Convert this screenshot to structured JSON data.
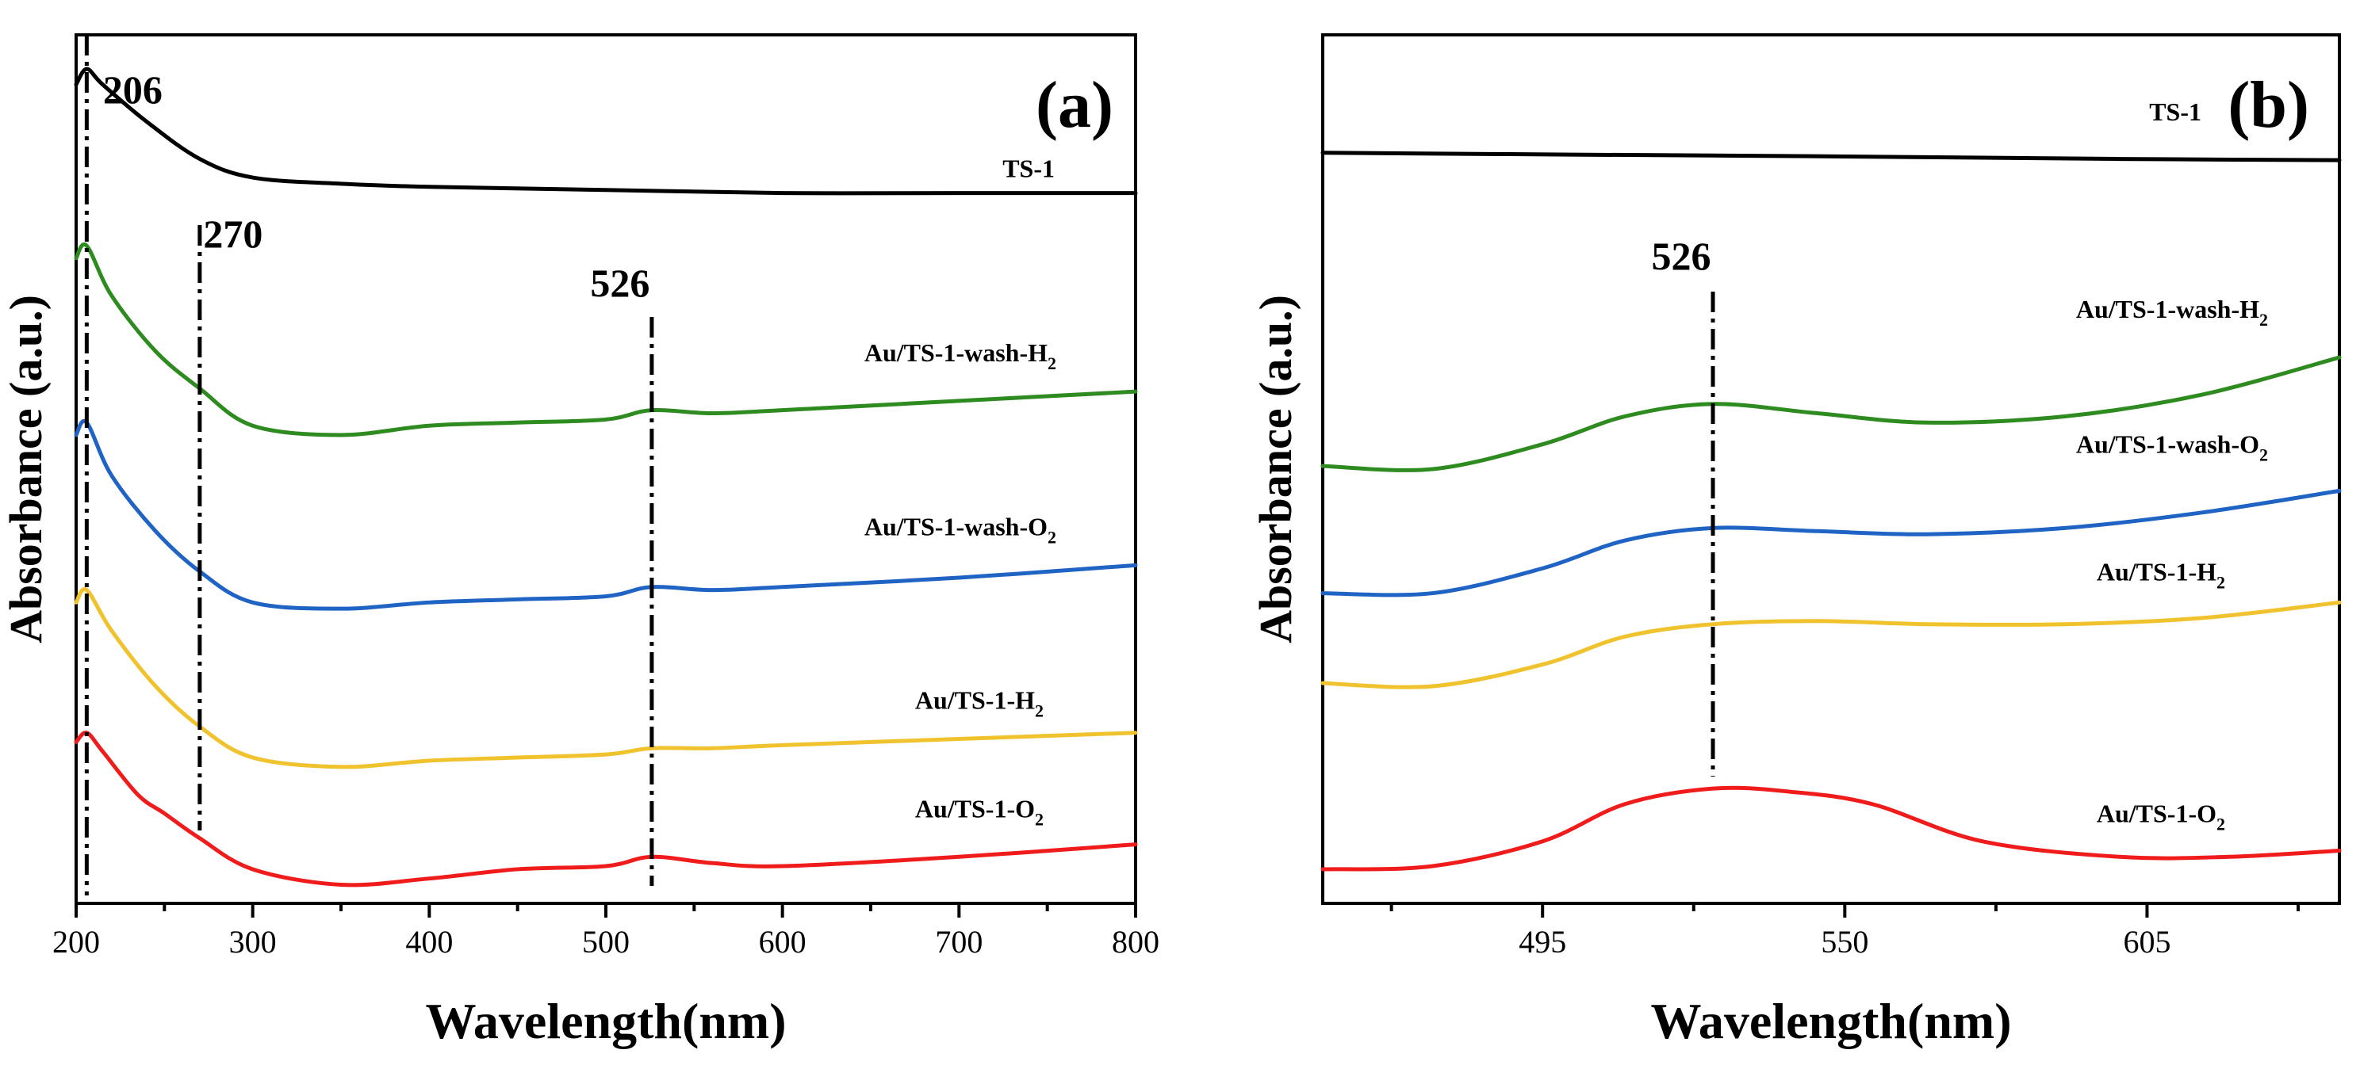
{
  "chart_data": [
    {
      "panel_label": "(a)",
      "type": "line",
      "title": "",
      "xlabel": "Wavelength(nm)",
      "ylabel": "Absorbance (a.u.)",
      "xlim": [
        200,
        800
      ],
      "ylim": [
        0,
        14
      ],
      "xticks": [
        "200",
        "300",
        "400",
        "500",
        "600",
        "700",
        "800"
      ],
      "xtick_values": [
        200,
        300,
        400,
        500,
        600,
        700,
        800
      ],
      "yticks_shown": false,
      "series": [
        {
          "name": "TS-1",
          "label_main": "TS-1",
          "label_sub": "",
          "label_suffix": "",
          "color": "#000000",
          "x": [
            200,
            206,
            215,
            240,
            270,
            300,
            350,
            400,
            500,
            600,
            700,
            800
          ],
          "y": [
            13.2,
            13.45,
            13.2,
            12.6,
            12.0,
            11.7,
            11.6,
            11.55,
            11.5,
            11.45,
            11.45,
            11.45
          ]
        },
        {
          "name": "Au/TS-1-wash-H2",
          "label_main": "Au/TS-1-wash-H",
          "label_sub": "2",
          "label_suffix": "",
          "color": "#2e8b1f",
          "x": [
            200,
            206,
            220,
            245,
            270,
            300,
            350,
            400,
            450,
            500,
            526,
            560,
            600,
            700,
            800
          ],
          "y": [
            10.4,
            10.6,
            9.8,
            8.9,
            8.3,
            7.7,
            7.55,
            7.7,
            7.75,
            7.8,
            7.95,
            7.9,
            7.95,
            8.1,
            8.25
          ]
        },
        {
          "name": "Au/TS-1-wash-O2",
          "label_main": "Au/TS-1-wash-O",
          "label_sub": "2",
          "label_suffix": "",
          "color": "#1f64c4",
          "x": [
            200,
            206,
            220,
            245,
            270,
            300,
            350,
            400,
            450,
            500,
            526,
            560,
            600,
            700,
            800
          ],
          "y": [
            7.55,
            7.75,
            6.9,
            6.0,
            5.35,
            4.85,
            4.75,
            4.85,
            4.9,
            4.95,
            5.1,
            5.05,
            5.1,
            5.25,
            5.45
          ]
        },
        {
          "name": "Au/TS-1-H2",
          "label_main": "Au/TS-1-H",
          "label_sub": "2",
          "label_suffix": "",
          "color": "#f0c22e",
          "x": [
            200,
            206,
            220,
            245,
            270,
            300,
            350,
            400,
            450,
            500,
            526,
            560,
            600,
            700,
            800
          ],
          "y": [
            4.85,
            5.05,
            4.4,
            3.5,
            2.85,
            2.35,
            2.2,
            2.3,
            2.35,
            2.4,
            2.5,
            2.5,
            2.55,
            2.65,
            2.75
          ]
        },
        {
          "name": "Au/TS-1-O2",
          "label_main": "Au/TS-1-O",
          "label_sub": "2",
          "label_suffix": "",
          "color": "#f01c1c",
          "x": [
            200,
            206,
            215,
            235,
            250,
            270,
            300,
            350,
            400,
            450,
            500,
            526,
            560,
            600,
            700,
            800
          ],
          "y": [
            2.6,
            2.75,
            2.45,
            1.75,
            1.45,
            1.05,
            0.55,
            0.3,
            0.4,
            0.55,
            0.6,
            0.75,
            0.65,
            0.6,
            0.75,
            0.95
          ]
        }
      ],
      "annotations": [
        {
          "text": "206",
          "x": 206
        },
        {
          "text": "270",
          "x": 270
        },
        {
          "text": "526",
          "x": 526
        }
      ]
    },
    {
      "panel_label": "(b)",
      "type": "line",
      "title": "",
      "xlabel": "Wavelength(nm)",
      "ylabel": "Absorbance (a.u.)",
      "xlim": [
        455,
        640
      ],
      "ylim": [
        0,
        14
      ],
      "xticks": [
        "495",
        "550",
        "605"
      ],
      "xtick_values": [
        495,
        550,
        605
      ],
      "yticks_shown": false,
      "series": [
        {
          "name": "TS-1",
          "label_main": "TS-1",
          "label_sub": "",
          "label_suffix": "",
          "color": "#000000",
          "x": [
            455,
            500,
            550,
            600,
            640
          ],
          "y": [
            12.1,
            12.07,
            12.04,
            12.0,
            11.98
          ]
        },
        {
          "name": "Au/TS-1-wash-H2",
          "label_main": "Au/TS-1-wash-H",
          "label_sub": "2",
          "label_suffix": "",
          "color": "#2e8b1f",
          "x": [
            455,
            475,
            495,
            510,
            526,
            545,
            565,
            590,
            615,
            640
          ],
          "y": [
            7.05,
            7.0,
            7.4,
            7.85,
            8.05,
            7.9,
            7.75,
            7.85,
            8.2,
            8.8
          ]
        },
        {
          "name": "Au/TS-1-wash-O2",
          "label_main": "Au/TS-1-wash-O",
          "label_sub": "2",
          "label_suffix": "",
          "color": "#1f64c4",
          "x": [
            455,
            475,
            495,
            510,
            526,
            545,
            565,
            590,
            615,
            640
          ],
          "y": [
            5.0,
            5.0,
            5.4,
            5.85,
            6.05,
            6.0,
            5.95,
            6.05,
            6.3,
            6.65
          ]
        },
        {
          "name": "Au/TS-1-H2",
          "label_main": "Au/TS-1-H",
          "label_sub": "2",
          "label_suffix": "",
          "color": "#f0c22e",
          "x": [
            455,
            475,
            495,
            510,
            526,
            545,
            565,
            590,
            615,
            640
          ],
          "y": [
            3.55,
            3.5,
            3.85,
            4.3,
            4.5,
            4.55,
            4.5,
            4.5,
            4.6,
            4.85
          ]
        },
        {
          "name": "Au/TS-1-O2",
          "label_main": "Au/TS-1-O",
          "label_sub": "2",
          "label_suffix": "",
          "color": "#f01c1c",
          "x": [
            455,
            475,
            495,
            510,
            526,
            540,
            555,
            575,
            600,
            620,
            640
          ],
          "y": [
            0.55,
            0.6,
            1.0,
            1.6,
            1.85,
            1.8,
            1.6,
            1.0,
            0.75,
            0.75,
            0.85
          ]
        }
      ],
      "annotations": [
        {
          "text": "526",
          "x": 526
        }
      ]
    }
  ]
}
